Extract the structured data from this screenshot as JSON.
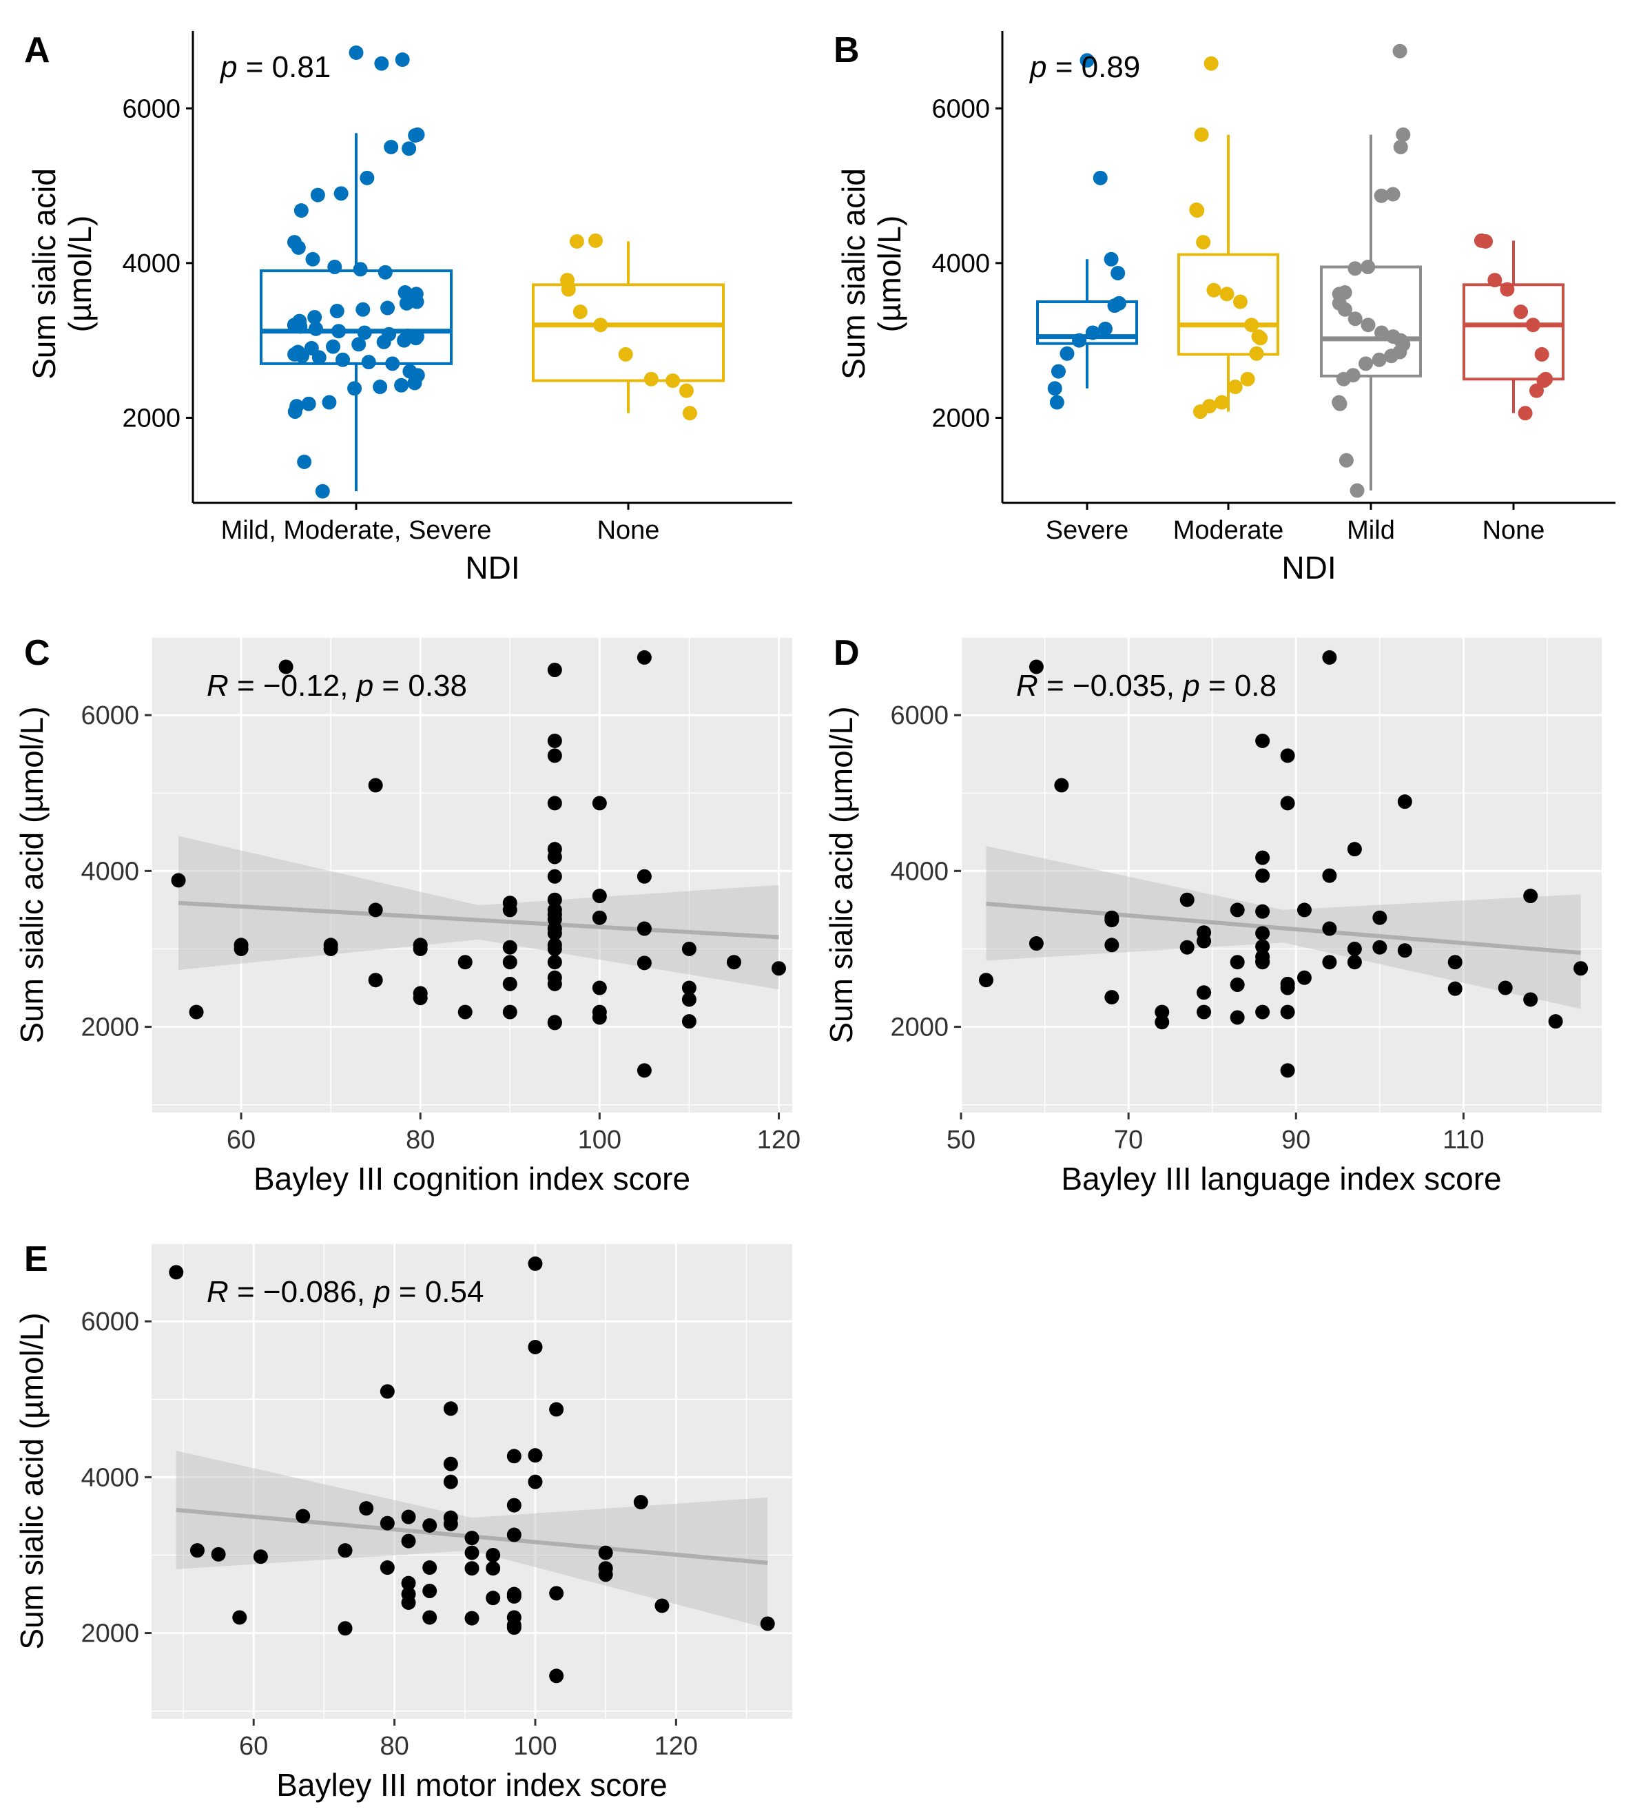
{
  "chart_data": [
    {
      "panel": "A",
      "type": "box",
      "xlabel": "NDI",
      "ylabel": "Sum sialic acid\n(µmol/L)",
      "ylim": [
        900,
        7000
      ],
      "yticks": [
        2000,
        4000,
        6000
      ],
      "annotation": {
        "p_label": "p",
        "text": " = 0.81"
      },
      "groups": [
        {
          "name": "Mild, Moderate, Severe",
          "color": "#0072BD",
          "box": {
            "lower_whisker": 1050,
            "q1": 2700,
            "median": 3120,
            "q3": 3900,
            "upper_whisker": 5680
          },
          "points": [
            6720,
            6580,
            6630,
            5650,
            5660,
            5480,
            5500,
            5100,
            4900,
            4880,
            4680,
            4270,
            4200,
            4050,
            3950,
            3920,
            3880,
            3620,
            3600,
            3500,
            3480,
            3420,
            3400,
            3380,
            3300,
            3250,
            3200,
            3180,
            3150,
            3120,
            3100,
            3080,
            3060,
            3050,
            3030,
            3000,
            2980,
            2950,
            2920,
            2900,
            2850,
            2820,
            2800,
            2780,
            2750,
            2720,
            2700,
            2600,
            2550,
            2450,
            2420,
            2400,
            2380,
            2200,
            2180,
            2150,
            2080,
            1430,
            1050
          ]
        },
        {
          "name": "None",
          "color": "#E8B90B",
          "box": {
            "lower_whisker": 2060,
            "q1": 2480,
            "median": 3200,
            "q3": 3720,
            "upper_whisker": 4280
          },
          "points": [
            4290,
            4280,
            3780,
            3660,
            3370,
            3200,
            2820,
            2500,
            2480,
            2350,
            2060
          ]
        }
      ]
    },
    {
      "panel": "B",
      "type": "box",
      "xlabel": "NDI",
      "ylabel": "Sum sialic acid\n(µmol/L)",
      "ylim": [
        900,
        7000
      ],
      "yticks": [
        2000,
        4000,
        6000
      ],
      "annotation": {
        "p_label": "p",
        "text": " = 0.89"
      },
      "groups": [
        {
          "name": "Severe",
          "color": "#0072BD",
          "box": {
            "lower_whisker": 2380,
            "q1": 2960,
            "median": 3050,
            "q3": 3500,
            "upper_whisker": 4050
          },
          "points": [
            6620,
            5100,
            4050,
            3870,
            3480,
            3450,
            3150,
            3100,
            3000,
            2830,
            2600,
            2380,
            2200
          ]
        },
        {
          "name": "Moderate",
          "color": "#E8B90B",
          "box": {
            "lower_whisker": 2080,
            "q1": 2820,
            "median": 3200,
            "q3": 4110,
            "upper_whisker": 5660
          },
          "points": [
            6580,
            5660,
            4690,
            4680,
            4270,
            3650,
            3600,
            3500,
            3200,
            3050,
            3030,
            2830,
            2500,
            2400,
            2200,
            2150,
            2080
          ]
        },
        {
          "name": "Mild",
          "color": "#8C8C8C",
          "box": {
            "lower_whisker": 1060,
            "q1": 2540,
            "median": 3020,
            "q3": 3950,
            "upper_whisker": 5660
          },
          "points": [
            6740,
            5660,
            5500,
            4890,
            4870,
            3950,
            3930,
            3620,
            3600,
            3480,
            3400,
            3280,
            3200,
            3100,
            3050,
            3000,
            2950,
            2850,
            2800,
            2750,
            2700,
            2550,
            2500,
            2200,
            2180,
            1450,
            1060
          ]
        },
        {
          "name": "None",
          "color": "#CC4E44",
          "box": {
            "lower_whisker": 2060,
            "q1": 2500,
            "median": 3200,
            "q3": 3720,
            "upper_whisker": 4290
          },
          "points": [
            4290,
            4280,
            3780,
            3660,
            3370,
            3200,
            2820,
            2500,
            2480,
            2350,
            2060
          ]
        }
      ]
    },
    {
      "panel": "C",
      "type": "scatter",
      "xlabel": "Bayley III cognition index score",
      "ylabel": "Sum sialic acid (µmol/L)",
      "xlim": [
        50,
        121.5
      ],
      "ylim": [
        900,
        7000
      ],
      "xticks": [
        60,
        80,
        100,
        120
      ],
      "yticks": [
        2000,
        4000,
        6000
      ],
      "annotation": {
        "r_label": "R",
        "r_text": " = −0.12, ",
        "p_label": "p",
        "p_text": " = 0.38"
      },
      "fit": {
        "x0": 53,
        "y0": 3590,
        "x1": 120,
        "y1": 3150,
        "ci_low_x0": 2730,
        "ci_high_x0": 4450,
        "ci_low_mid": 3120,
        "ci_high_mid": 3560,
        "ci_low_x1": 2480,
        "ci_high_x1": 3820
      },
      "x": [
        53,
        55,
        60,
        60,
        65,
        70,
        70,
        75,
        75,
        75,
        80,
        80,
        80,
        80,
        85,
        85,
        90,
        90,
        90,
        90,
        90,
        90,
        95,
        95,
        95,
        95,
        95,
        95,
        95,
        95,
        95,
        95,
        95,
        95,
        95,
        95,
        95,
        95,
        95,
        95,
        95,
        95,
        100,
        100,
        100,
        100,
        100,
        100,
        105,
        105,
        105,
        105,
        105,
        110,
        110,
        110,
        110,
        115,
        120
      ],
      "y": [
        3880,
        2190,
        3050,
        3000,
        6620,
        3050,
        3000,
        5100,
        3500,
        2600,
        3050,
        3000,
        2430,
        2370,
        2830,
        2190,
        3590,
        3500,
        3020,
        2830,
        2550,
        2190,
        6580,
        5670,
        5480,
        4870,
        4280,
        4180,
        3930,
        3630,
        3500,
        3440,
        3380,
        3260,
        3200,
        3050,
        3000,
        2830,
        2630,
        2550,
        2060,
        2050,
        4870,
        3680,
        3400,
        2500,
        2190,
        2120,
        6740,
        3930,
        3260,
        2820,
        1440,
        3000,
        2500,
        2350,
        2070,
        2830,
        2750
      ]
    },
    {
      "panel": "D",
      "type": "scatter",
      "xlabel": "Bayley III language index score",
      "ylabel": "Sum sialic acid (µmol/L)",
      "xlim": [
        50,
        126.5
      ],
      "ylim": [
        900,
        7000
      ],
      "xticks": [
        50,
        70,
        90,
        110
      ],
      "yticks": [
        2000,
        4000,
        6000
      ],
      "annotation": {
        "r_label": "R",
        "r_text": " = −0.035, ",
        "p_label": "p",
        "p_text": " = 0.8"
      },
      "fit": {
        "x0": 53,
        "y0": 3580,
        "x1": 124,
        "y1": 2950,
        "ci_low_x0": 2850,
        "ci_high_x0": 4320,
        "ci_low_mid": 3080,
        "ci_high_mid": 3500,
        "ci_low_x1": 2230,
        "ci_high_x1": 3700
      },
      "x": [
        53,
        59,
        59,
        62,
        68,
        68,
        68,
        68,
        74,
        74,
        77,
        77,
        79,
        79,
        79,
        79,
        83,
        83,
        83,
        83,
        86,
        86,
        86,
        86,
        86,
        86,
        86,
        86,
        86,
        86,
        89,
        89,
        89,
        89,
        89,
        89,
        91,
        91,
        94,
        94,
        94,
        94,
        97,
        97,
        97,
        100,
        100,
        103,
        103,
        109,
        109,
        115,
        118,
        118,
        121,
        124
      ],
      "y": [
        2600,
        6620,
        3070,
        5100,
        3400,
        3370,
        3050,
        2380,
        2190,
        2060,
        3630,
        3020,
        3210,
        3100,
        2440,
        2190,
        3500,
        2830,
        2540,
        2120,
        5670,
        4170,
        3940,
        3480,
        3200,
        3030,
        2900,
        2840,
        2830,
        2190,
        5480,
        4870,
        2550,
        2500,
        2190,
        1440,
        3500,
        2630,
        6740,
        3940,
        3260,
        2830,
        4280,
        3000,
        2830,
        3400,
        3020,
        4890,
        2980,
        2830,
        2490,
        2500,
        3680,
        2350,
        2070,
        2750
      ]
    },
    {
      "panel": "E",
      "type": "scatter",
      "xlabel": "Bayley III motor index score",
      "ylabel": "Sum sialic acid (µmol/L)",
      "xlim": [
        45.5,
        136.5
      ],
      "ylim": [
        900,
        7000
      ],
      "xticks": [
        60,
        80,
        100,
        120
      ],
      "yticks": [
        2000,
        4000,
        6000
      ],
      "annotation": {
        "r_label": "R",
        "r_text": " = −0.086, ",
        "p_label": "p",
        "p_text": " = 0.54"
      },
      "fit": {
        "x0": 49,
        "y0": 3580,
        "x1": 133,
        "y1": 2900,
        "ci_low_x0": 2820,
        "ci_high_x0": 4340,
        "ci_low_mid": 3060,
        "ci_high_mid": 3480,
        "ci_low_x1": 2060,
        "ci_high_x1": 3740
      },
      "x": [
        49,
        52,
        55,
        58,
        61,
        67,
        73,
        73,
        76,
        79,
        79,
        79,
        82,
        82,
        82,
        82,
        82,
        85,
        85,
        85,
        85,
        88,
        88,
        88,
        88,
        88,
        91,
        91,
        91,
        91,
        94,
        94,
        94,
        97,
        97,
        97,
        97,
        97,
        97,
        97,
        97,
        100,
        100,
        100,
        100,
        103,
        103,
        103,
        110,
        110,
        110,
        115,
        118,
        133
      ],
      "y": [
        6630,
        3060,
        3010,
        2200,
        2980,
        3500,
        3060,
        2060,
        3600,
        5100,
        3410,
        2840,
        3490,
        3180,
        2640,
        2500,
        2390,
        3380,
        2840,
        2540,
        2200,
        4880,
        4170,
        3940,
        3480,
        3400,
        3220,
        3030,
        2830,
        2190,
        3000,
        2830,
        2450,
        4270,
        3640,
        3260,
        2500,
        2470,
        2200,
        2100,
        2070,
        6740,
        5670,
        4280,
        3940,
        4870,
        2510,
        1450,
        3030,
        2830,
        2750,
        3680,
        2350,
        2120
      ]
    }
  ]
}
